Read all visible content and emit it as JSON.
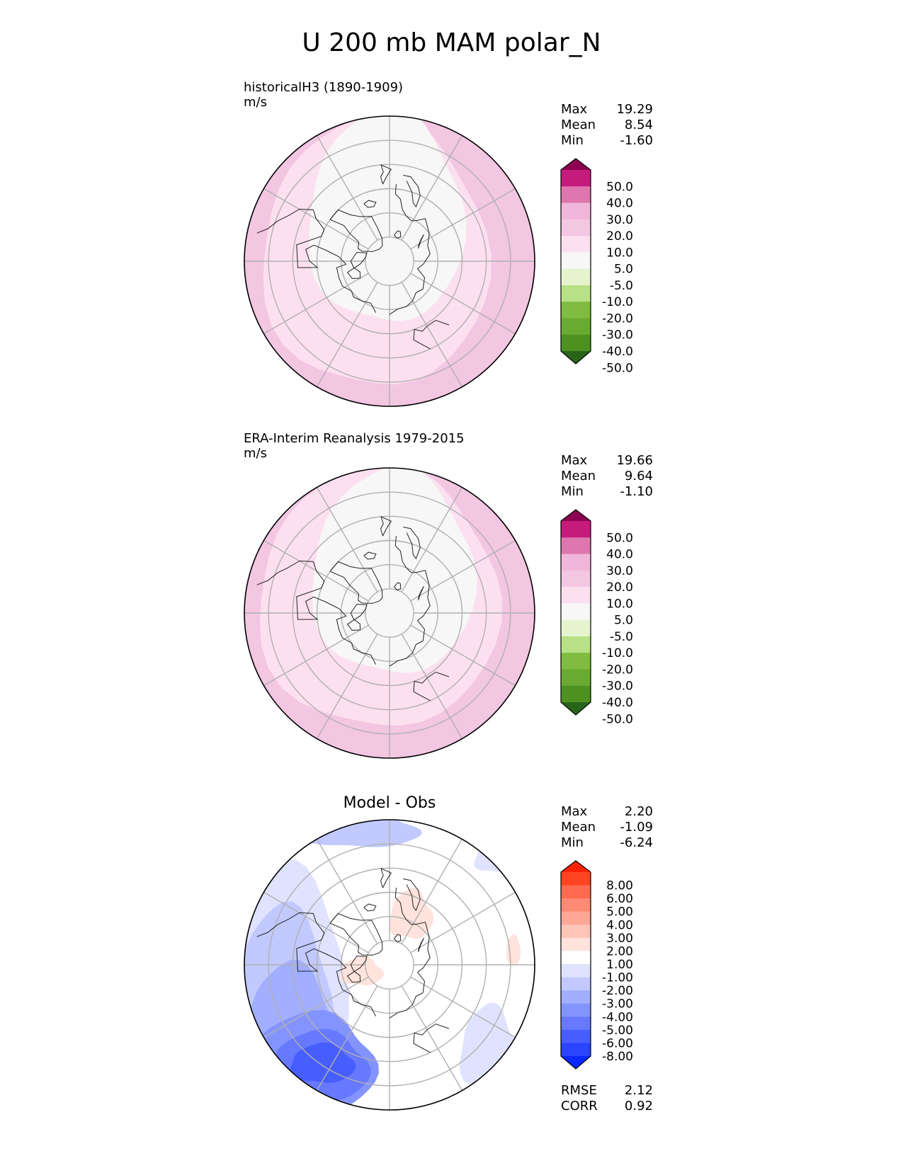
{
  "figure_title": "U 200 mb MAM polar_N",
  "panels": [
    {
      "id": "test",
      "title": "historicalH3 (1890-1909)",
      "units": "m/s",
      "stats": [
        {
          "label": "Max",
          "value": "19.29"
        },
        {
          "label": "Mean",
          "value": "8.54"
        },
        {
          "label": "Min",
          "value": "-1.60"
        }
      ],
      "colorbar": {
        "levels": [
          "50.0",
          "40.0",
          "30.0",
          "20.0",
          "10.0",
          "5.0",
          "-5.0",
          "-10.0",
          "-20.0",
          "-30.0",
          "-40.0",
          "-50.0"
        ],
        "colors": [
          "#8e0152",
          "#c51b7d",
          "#de77ae",
          "#f1b6da",
          "#f3c6e2",
          "#fde0ef",
          "#f7f7f7",
          "#e6f5d0",
          "#b8e186",
          "#7fbc41",
          "#6aaa32",
          "#4d9221",
          "#276419"
        ]
      }
    },
    {
      "id": "reference",
      "title": "ERA-Interim Reanalysis 1979-2015",
      "units": "m/s",
      "stats": [
        {
          "label": "Max",
          "value": "19.66"
        },
        {
          "label": "Mean",
          "value": "9.64"
        },
        {
          "label": "Min",
          "value": "-1.10"
        }
      ],
      "colorbar": {
        "levels": [
          "50.0",
          "40.0",
          "30.0",
          "20.0",
          "10.0",
          "5.0",
          "-5.0",
          "-10.0",
          "-20.0",
          "-30.0",
          "-40.0",
          "-50.0"
        ],
        "colors": [
          "#8e0152",
          "#c51b7d",
          "#de77ae",
          "#f1b6da",
          "#f3c6e2",
          "#fde0ef",
          "#f7f7f7",
          "#e6f5d0",
          "#b8e186",
          "#7fbc41",
          "#6aaa32",
          "#4d9221",
          "#276419"
        ]
      }
    },
    {
      "id": "diff",
      "title": "Model - Obs",
      "units": "",
      "stats": [
        {
          "label": "Max",
          "value": "2.20"
        },
        {
          "label": "Mean",
          "value": "-1.09"
        },
        {
          "label": "Min",
          "value": "-6.24"
        }
      ],
      "extra_stats": [
        {
          "label": "RMSE",
          "value": "2.12"
        },
        {
          "label": "CORR",
          "value": "0.92"
        }
      ],
      "colorbar": {
        "levels": [
          "8.00",
          "6.00",
          "5.00",
          "4.00",
          "3.00",
          "2.00",
          "1.00",
          "-1.00",
          "-2.00",
          "-3.00",
          "-4.00",
          "-5.00",
          "-6.00",
          "-8.00"
        ],
        "colors": [
          "#ff2200",
          "#ff4422",
          "#ff6a4e",
          "#ff8a73",
          "#ffa797",
          "#ffc4b8",
          "#ffe3dc",
          "#ffffff",
          "#dfe3ff",
          "#c1c9ff",
          "#a2aeff",
          "#8494ff",
          "#6679ff",
          "#475eff",
          "#2a44ff",
          "#0a28ff"
        ]
      }
    }
  ],
  "chart_data": [
    {
      "type": "heatmap",
      "projection": "north polar stereographic",
      "title": "historicalH3 (1890-1909)",
      "units": "m/s",
      "stats": {
        "max": 19.29,
        "mean": 8.54,
        "min": -1.6
      },
      "contour_levels": [
        -50,
        -40,
        -30,
        -20,
        -10,
        -5,
        5,
        10,
        20,
        30,
        40,
        50
      ]
    },
    {
      "type": "heatmap",
      "projection": "north polar stereographic",
      "title": "ERA-Interim Reanalysis 1979-2015",
      "units": "m/s",
      "stats": {
        "max": 19.66,
        "mean": 9.64,
        "min": -1.1
      },
      "contour_levels": [
        -50,
        -40,
        -30,
        -20,
        -10,
        -5,
        5,
        10,
        20,
        30,
        40,
        50
      ]
    },
    {
      "type": "heatmap",
      "projection": "north polar stereographic",
      "title": "Model - Obs",
      "stats": {
        "max": 2.2,
        "mean": -1.09,
        "min": -6.24,
        "rmse": 2.12,
        "corr": 0.92
      },
      "contour_levels": [
        -8,
        -6,
        -5,
        -4,
        -3,
        -2,
        -1,
        1,
        2,
        3,
        4,
        5,
        6,
        8
      ]
    }
  ]
}
